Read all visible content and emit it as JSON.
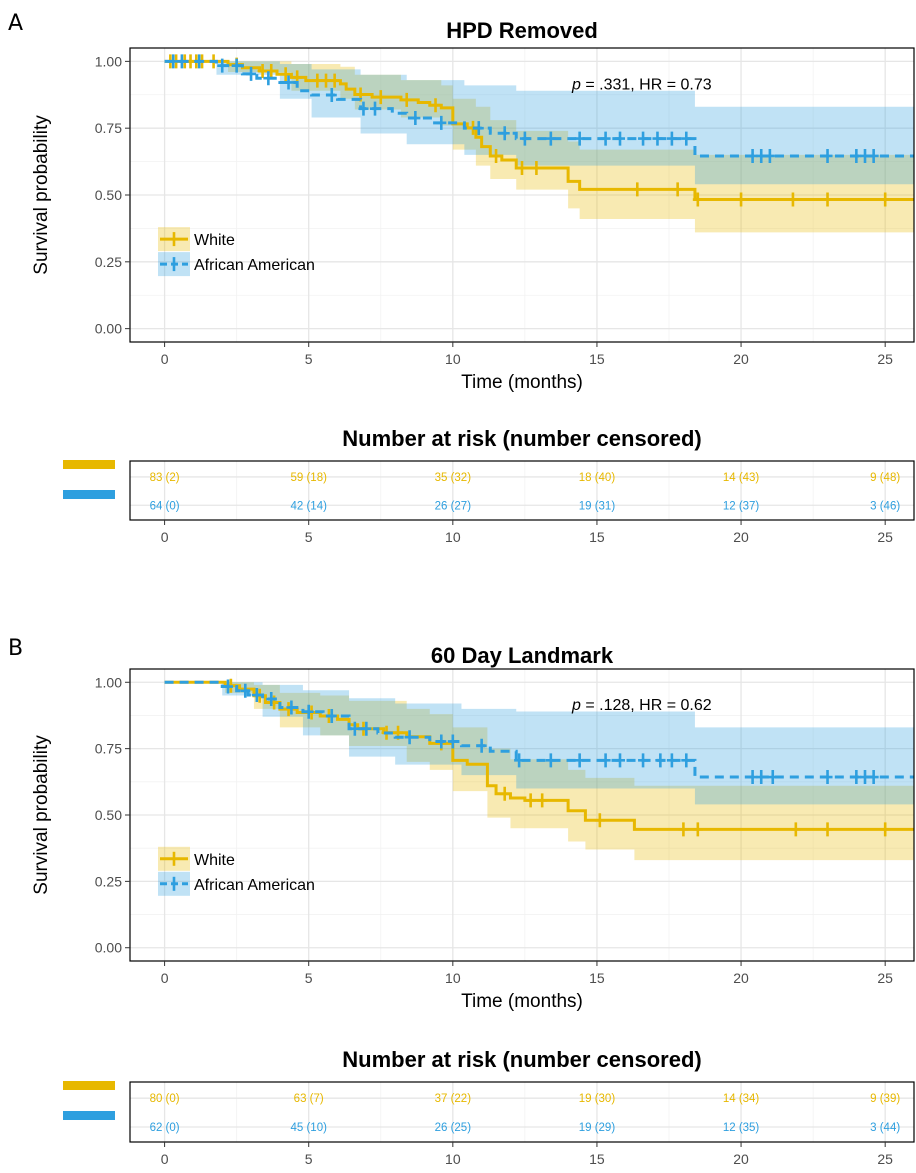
{
  "colors": {
    "white": "#E7B800",
    "african_american": "#2E9FDF"
  },
  "chart_data": [
    {
      "panel_label": "A",
      "type": "line",
      "subtype": "kaplan-meier",
      "title": "HPD Removed",
      "xlabel": "Time (months)",
      "ylabel": "Survival probability",
      "xlim": [
        -1.2,
        26
      ],
      "ylim": [
        -0.05,
        1.05
      ],
      "x_ticks": [
        "0",
        "5",
        "10",
        "15",
        "20",
        "25"
      ],
      "y_ticks": [
        "0.00",
        "0.25",
        "0.50",
        "0.75",
        "1.00"
      ],
      "grid": true,
      "annotation": {
        "p_italic": "p",
        "rest": " = .331, HR = 0.73"
      },
      "legend": {
        "position": "left",
        "entries": [
          "White",
          "African American"
        ]
      },
      "series": [
        {
          "name": "White",
          "color": "#E7B800",
          "line": "solid",
          "steps": [
            [
              0,
              1.0
            ],
            [
              2.2,
              0.988
            ],
            [
              2.7,
              0.976
            ],
            [
              3.3,
              0.964
            ],
            [
              3.9,
              0.952
            ],
            [
              4.4,
              0.94
            ],
            [
              4.9,
              0.928
            ],
            [
              6.1,
              0.916
            ],
            [
              6.3,
              0.896
            ],
            [
              6.6,
              0.876
            ],
            [
              7.2,
              0.866
            ],
            [
              8.2,
              0.856
            ],
            [
              8.8,
              0.846
            ],
            [
              9.2,
              0.836
            ],
            [
              9.6,
              0.826
            ],
            [
              10.0,
              0.766
            ],
            [
              10.5,
              0.751
            ],
            [
              10.8,
              0.716
            ],
            [
              11.0,
              0.681
            ],
            [
              11.3,
              0.646
            ],
            [
              11.7,
              0.631
            ],
            [
              12.2,
              0.601
            ],
            [
              14.0,
              0.551
            ],
            [
              14.4,
              0.521
            ],
            [
              18.4,
              0.483
            ]
          ],
          "end_x": 26,
          "censor_x": [
            0.2,
            0.4,
            0.7,
            0.9,
            1.1,
            1.3,
            1.7,
            2.5,
            3.4,
            3.7,
            4.2,
            4.6,
            5.3,
            5.6,
            5.9,
            6.8,
            7.5,
            8.4,
            9.4,
            10.7,
            11.5,
            12.4,
            12.9,
            16.4,
            17.8,
            18.5,
            20.0,
            21.8,
            23.0,
            25.0
          ],
          "ci": [
            [
              0,
              1.0,
              1.0
            ],
            [
              2.2,
              1.0,
              0.96
            ],
            [
              4.4,
              0.99,
              0.89
            ],
            [
              6.1,
              0.98,
              0.86
            ],
            [
              6.6,
              0.95,
              0.82
            ],
            [
              8.2,
              0.93,
              0.79
            ],
            [
              9.6,
              0.91,
              0.76
            ],
            [
              10.0,
              0.86,
              0.67
            ],
            [
              10.8,
              0.83,
              0.61
            ],
            [
              11.3,
              0.78,
              0.56
            ],
            [
              12.2,
              0.74,
              0.52
            ],
            [
              14.0,
              0.7,
              0.45
            ],
            [
              14.4,
              0.67,
              0.41
            ],
            [
              18.4,
              0.65,
              0.36
            ]
          ],
          "risk_table": [
            "83 (2)",
            "59 (18)",
            "35 (32)",
            "18 (40)",
            "14 (43)",
            "9 (48)"
          ]
        },
        {
          "name": "African American",
          "color": "#2E9FDF",
          "line": "dashed",
          "steps": [
            [
              0,
              1.0
            ],
            [
              1.8,
              0.984
            ],
            [
              2.7,
              0.953
            ],
            [
              3.2,
              0.937
            ],
            [
              4.0,
              0.921
            ],
            [
              4.6,
              0.89
            ],
            [
              5.1,
              0.874
            ],
            [
              6.0,
              0.858
            ],
            [
              6.8,
              0.823
            ],
            [
              7.9,
              0.806
            ],
            [
              8.4,
              0.788
            ],
            [
              9.3,
              0.77
            ],
            [
              10.4,
              0.75
            ],
            [
              11.3,
              0.731
            ],
            [
              12.2,
              0.711
            ],
            [
              18.4,
              0.646
            ]
          ],
          "end_x": 26,
          "censor_x": [
            0.3,
            0.6,
            1.2,
            2.0,
            2.5,
            3.0,
            3.6,
            4.3,
            5.8,
            6.9,
            7.3,
            8.7,
            9.6,
            10.9,
            11.8,
            12.5,
            13.4,
            14.4,
            15.3,
            15.8,
            16.6,
            17.1,
            17.6,
            18.1,
            20.4,
            20.7,
            21.0,
            23.0,
            24.0,
            24.3,
            24.6
          ],
          "ci": [
            [
              0,
              1.0,
              1.0
            ],
            [
              1.8,
              1.0,
              0.95
            ],
            [
              4.0,
              0.99,
              0.86
            ],
            [
              5.1,
              0.97,
              0.79
            ],
            [
              6.8,
              0.95,
              0.73
            ],
            [
              8.4,
              0.93,
              0.69
            ],
            [
              10.4,
              0.91,
              0.65
            ],
            [
              12.2,
              0.89,
              0.61
            ],
            [
              18.4,
              0.83,
              0.54
            ]
          ],
          "risk_table": [
            "64 (0)",
            "42 (14)",
            "26 (27)",
            "19 (31)",
            "12 (37)",
            "3 (46)"
          ]
        }
      ],
      "risk_title": "Number at risk (number censored)",
      "risk_x_ticks": [
        "0",
        "5",
        "10",
        "15",
        "20",
        "25"
      ]
    },
    {
      "panel_label": "B",
      "type": "line",
      "subtype": "kaplan-meier",
      "title": "60 Day Landmark",
      "xlabel": "Time (months)",
      "ylabel": "Survival probability",
      "xlim": [
        -1.2,
        26
      ],
      "ylim": [
        -0.05,
        1.05
      ],
      "x_ticks": [
        "0",
        "5",
        "10",
        "15",
        "20",
        "25"
      ],
      "y_ticks": [
        "0.00",
        "0.25",
        "0.50",
        "0.75",
        "1.00"
      ],
      "grid": true,
      "annotation": {
        "p_italic": "p",
        "rest": " = .128, HR = 0.62"
      },
      "legend": {
        "position": "left",
        "entries": [
          "White",
          "African American"
        ]
      },
      "series": [
        {
          "name": "White",
          "color": "#E7B800",
          "line": "solid",
          "steps": [
            [
              0,
              1.0
            ],
            [
              2.1,
              0.987
            ],
            [
              2.6,
              0.974
            ],
            [
              3.1,
              0.949
            ],
            [
              3.5,
              0.924
            ],
            [
              4.0,
              0.899
            ],
            [
              4.6,
              0.886
            ],
            [
              5.4,
              0.873
            ],
            [
              6.0,
              0.86
            ],
            [
              6.4,
              0.84
            ],
            [
              6.7,
              0.825
            ],
            [
              7.6,
              0.81
            ],
            [
              8.4,
              0.795
            ],
            [
              9.2,
              0.77
            ],
            [
              10.0,
              0.706
            ],
            [
              10.5,
              0.691
            ],
            [
              11.2,
              0.61
            ],
            [
              11.5,
              0.58
            ],
            [
              12.0,
              0.564
            ],
            [
              12.5,
              0.555
            ],
            [
              14.0,
              0.516
            ],
            [
              14.6,
              0.48
            ],
            [
              16.3,
              0.446
            ]
          ],
          "end_x": 26,
          "censor_x": [
            2.3,
            3.3,
            3.8,
            4.3,
            5.1,
            5.7,
            6.9,
            7.7,
            8.1,
            9.6,
            11.8,
            12.7,
            13.1,
            15.1,
            18.0,
            18.5,
            21.9,
            23.0,
            25.0
          ],
          "ci": [
            [
              0,
              1.0,
              1.0
            ],
            [
              2.1,
              1.0,
              0.96
            ],
            [
              3.1,
              0.99,
              0.9
            ],
            [
              4.0,
              0.96,
              0.83
            ],
            [
              5.4,
              0.95,
              0.8
            ],
            [
              6.4,
              0.93,
              0.76
            ],
            [
              8.4,
              0.9,
              0.7
            ],
            [
              9.2,
              0.88,
              0.67
            ],
            [
              10.0,
              0.83,
              0.59
            ],
            [
              11.2,
              0.75,
              0.49
            ],
            [
              12.0,
              0.71,
              0.45
            ],
            [
              14.0,
              0.67,
              0.4
            ],
            [
              14.6,
              0.64,
              0.37
            ],
            [
              16.3,
              0.61,
              0.33
            ]
          ],
          "risk_table": [
            "80 (0)",
            "63 (7)",
            "37 (22)",
            "19 (30)",
            "14 (34)",
            "9 (39)"
          ]
        },
        {
          "name": "African American",
          "color": "#2E9FDF",
          "line": "dashed",
          "steps": [
            [
              0,
              1.0
            ],
            [
              2.0,
              0.984
            ],
            [
              2.5,
              0.968
            ],
            [
              2.9,
              0.952
            ],
            [
              3.4,
              0.937
            ],
            [
              4.0,
              0.905
            ],
            [
              4.8,
              0.889
            ],
            [
              5.5,
              0.873
            ],
            [
              6.4,
              0.825
            ],
            [
              7.4,
              0.809
            ],
            [
              8.0,
              0.793
            ],
            [
              9.2,
              0.777
            ],
            [
              10.3,
              0.761
            ],
            [
              11.3,
              0.74
            ],
            [
              12.2,
              0.706
            ],
            [
              18.4,
              0.643
            ]
          ],
          "end_x": 26,
          "censor_x": [
            2.2,
            2.8,
            3.2,
            3.7,
            4.4,
            5.0,
            5.8,
            6.6,
            7.0,
            8.5,
            9.6,
            10.0,
            11.0,
            12.3,
            13.4,
            14.4,
            15.3,
            15.8,
            16.6,
            17.2,
            17.6,
            18.1,
            20.4,
            20.7,
            21.1,
            23.0,
            24.0,
            24.3,
            24.6
          ],
          "ci": [
            [
              0,
              1.0,
              1.0
            ],
            [
              2.0,
              1.0,
              0.95
            ],
            [
              3.4,
              0.99,
              0.87
            ],
            [
              4.8,
              0.97,
              0.8
            ],
            [
              6.4,
              0.94,
              0.72
            ],
            [
              8.0,
              0.92,
              0.69
            ],
            [
              10.3,
              0.9,
              0.65
            ],
            [
              12.2,
              0.89,
              0.6
            ],
            [
              18.4,
              0.83,
              0.54
            ]
          ],
          "risk_table": [
            "62 (0)",
            "45 (10)",
            "26 (25)",
            "19 (29)",
            "12 (35)",
            "3 (44)"
          ]
        }
      ],
      "risk_title": "Number at risk (number censored)",
      "risk_x_ticks": [
        "0",
        "5",
        "10",
        "15",
        "20",
        "25"
      ]
    }
  ]
}
